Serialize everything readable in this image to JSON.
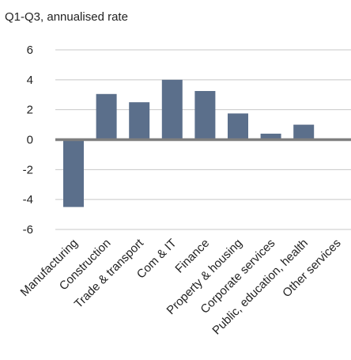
{
  "chart_data": {
    "type": "bar",
    "subtitle": "Q1-Q3, annualised rate",
    "categories": [
      "Manufacturing",
      "Construction",
      "Trade & transport",
      "Com & IT",
      "Finance",
      "Property & housing",
      "Corporate services",
      "Public, education, health",
      "Other services"
    ],
    "values": [
      -4.5,
      3.05,
      2.5,
      4.0,
      3.25,
      1.75,
      0.4,
      1.0,
      0.0
    ],
    "ylim": [
      -6,
      6
    ],
    "yticks": [
      "-6",
      "-4",
      "-2",
      "0",
      "2",
      "4",
      "6"
    ],
    "grid": true,
    "bar_color": "#5b6f8b",
    "zero_line_color": "#7f7f7f",
    "grid_color": "#c8c8c8"
  }
}
